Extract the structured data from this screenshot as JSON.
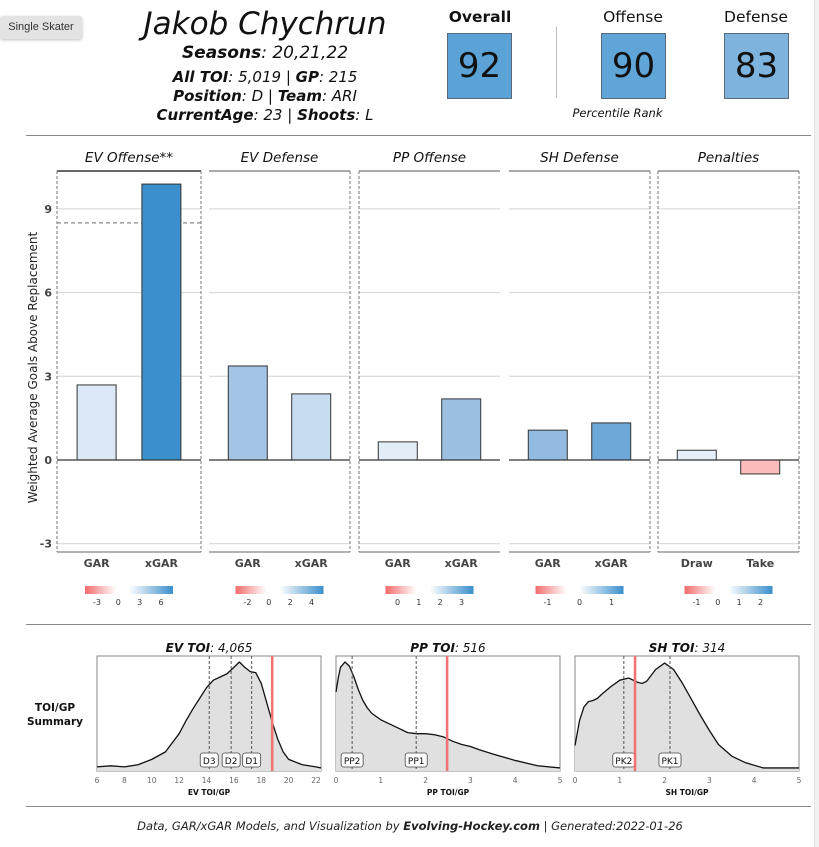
{
  "app": {
    "mode_button": "Single Skater"
  },
  "player": {
    "name": "Jakob Chychrun",
    "seasons_label": "Seasons",
    "seasons_value": ": 20,21,22",
    "all_toi_label": "All TOI",
    "all_toi_value": ": 5,019 | ",
    "gp_label": "GP",
    "gp_value": ": 215",
    "position_label": "Position",
    "position_value": ": D | ",
    "team_label": "Team",
    "team_value": ": ARI",
    "age_label": "CurrentAge",
    "age_value": ": 23 | ",
    "shoots_label": "Shoots",
    "shoots_value": ": L"
  },
  "percentiles": {
    "overall": {
      "label": "Overall",
      "value": "92",
      "color": "#5ba3d6"
    },
    "offense": {
      "label": "Offense",
      "value": "90",
      "color": "#5fa5d7"
    },
    "defense": {
      "label": "Defense",
      "value": "83",
      "color": "#7db3dd"
    },
    "caption": "Percentile Rank"
  },
  "chart_data": [
    {
      "type": "bar",
      "title": "Weighted Average GAR / xGAR by component",
      "ylabel": "Weighted Average Goals Above Replacement",
      "ylim": [
        -3.4,
        10.5
      ],
      "yticks": [
        "9",
        "6",
        "3",
        "0",
        "-3"
      ],
      "ytick_values": [
        9,
        6,
        3,
        0,
        -3
      ],
      "grid": true,
      "panels": [
        {
          "title": "EV Offense**",
          "categories": [
            "GAR",
            "xGAR"
          ],
          "values": [
            2.69,
            9.89
          ],
          "colors": [
            "#dce8f5",
            "#3a8fcc"
          ],
          "reference_line": 8.5,
          "legend_ticks": [
            "-3",
            "0",
            "3",
            "6"
          ]
        },
        {
          "title": "EV Defense",
          "categories": [
            "GAR",
            "xGAR"
          ],
          "values": [
            3.37,
            2.37
          ],
          "colors": [
            "#a3c4e5",
            "#c8dcf0"
          ],
          "legend_ticks": [
            "-2",
            "0",
            "2",
            "4"
          ]
        },
        {
          "title": "PP Offense",
          "categories": [
            "GAR",
            "xGAR"
          ],
          "values": [
            0.65,
            2.19
          ],
          "colors": [
            "#e3edf7",
            "#9bc0e3"
          ],
          "legend_ticks": [
            "0",
            "1",
            "2",
            "3"
          ]
        },
        {
          "title": "SH Defense",
          "categories": [
            "GAR",
            "xGAR"
          ],
          "values": [
            1.07,
            1.33
          ],
          "colors": [
            "#93bbe2",
            "#6ea8d8"
          ],
          "legend_ticks": [
            "-1",
            "0",
            "1"
          ]
        },
        {
          "title": "Penalties",
          "categories": [
            "Draw",
            "Take"
          ],
          "values": [
            0.35,
            -0.5
          ],
          "colors": [
            "#e6eff8",
            "#fdbcbc"
          ],
          "legend_ticks": [
            "-1",
            "0",
            "1",
            "2"
          ]
        }
      ]
    },
    {
      "type": "area",
      "row_label_1": "TOI/GP",
      "row_label_2": "Summary",
      "panels": [
        {
          "title_label": "EV TOI",
          "title_value": ": 4,065",
          "xlabel": "EV TOI/GP",
          "xlim": [
            6,
            22.5
          ],
          "xticks": [
            "6",
            "8",
            "10",
            "12",
            "14",
            "16",
            "18",
            "20",
            "22"
          ],
          "xtick_values": [
            6,
            8,
            10,
            12,
            14,
            16,
            18,
            20,
            22
          ],
          "player_value": 18.8,
          "markers": [
            {
              "label": "D3",
              "x": 14.2
            },
            {
              "label": "D2",
              "x": 15.8
            },
            {
              "label": "D1",
              "x": 17.3
            }
          ],
          "density_x": [
            6,
            7,
            8,
            9,
            10,
            11,
            12,
            12.5,
            13,
            13.5,
            14,
            14.5,
            15,
            15.5,
            16,
            16.4,
            16.8,
            17.2,
            17.6,
            18,
            18.4,
            18.8,
            19.2,
            19.6,
            20,
            21,
            22,
            22.5
          ],
          "density_y": [
            0.02,
            0.03,
            0.02,
            0.04,
            0.09,
            0.16,
            0.33,
            0.45,
            0.56,
            0.66,
            0.76,
            0.83,
            0.86,
            0.89,
            0.95,
            1.0,
            0.95,
            0.91,
            0.9,
            0.8,
            0.62,
            0.44,
            0.28,
            0.16,
            0.09,
            0.04,
            0.02,
            0.01
          ]
        },
        {
          "title_label": "PP TOI",
          "title_value": ": 516",
          "xlabel": "PP TOI/GP",
          "xlim": [
            0,
            5
          ],
          "xticks": [
            "0",
            "1",
            "2",
            "3",
            "4",
            "5"
          ],
          "xtick_values": [
            0,
            1,
            2,
            3,
            4,
            5
          ],
          "player_value": 2.48,
          "markers": [
            {
              "label": "PP2",
              "x": 0.36
            },
            {
              "label": "PP1",
              "x": 1.79
            }
          ],
          "density_x": [
            0,
            0.05,
            0.1,
            0.2,
            0.3,
            0.4,
            0.5,
            0.6,
            0.7,
            0.8,
            1.0,
            1.2,
            1.4,
            1.6,
            1.8,
            2.0,
            2.2,
            2.4,
            2.6,
            2.8,
            3.0,
            3.2,
            3.5,
            4.0,
            4.5,
            5.0
          ],
          "density_y": [
            0.72,
            0.85,
            0.95,
            1.0,
            0.96,
            0.86,
            0.74,
            0.64,
            0.57,
            0.52,
            0.46,
            0.42,
            0.38,
            0.34,
            0.33,
            0.33,
            0.32,
            0.3,
            0.26,
            0.23,
            0.21,
            0.18,
            0.14,
            0.08,
            0.03,
            0.01
          ]
        },
        {
          "title_label": "SH TOI",
          "title_value": ": 314",
          "xlabel": "SH TOI/GP",
          "xlim": [
            0,
            5
          ],
          "xticks": [
            "0",
            "1",
            "2",
            "3",
            "4",
            "5"
          ],
          "xtick_values": [
            0,
            1,
            2,
            3,
            4,
            5
          ],
          "player_value": 1.34,
          "markers": [
            {
              "label": "PK2",
              "x": 1.09
            },
            {
              "label": "PK1",
              "x": 2.12
            }
          ],
          "density_x": [
            0,
            0.1,
            0.2,
            0.3,
            0.4,
            0.5,
            0.6,
            0.8,
            1.0,
            1.2,
            1.4,
            1.5,
            1.6,
            1.8,
            2.0,
            2.2,
            2.4,
            2.6,
            2.8,
            3.0,
            3.2,
            3.5,
            3.8,
            4.2,
            4.6,
            5.0
          ],
          "density_y": [
            0.22,
            0.45,
            0.58,
            0.63,
            0.64,
            0.66,
            0.7,
            0.77,
            0.83,
            0.85,
            0.81,
            0.8,
            0.82,
            0.93,
            0.99,
            0.93,
            0.8,
            0.65,
            0.5,
            0.36,
            0.23,
            0.12,
            0.06,
            0.01,
            0.01,
            0.01
          ]
        }
      ]
    }
  ],
  "footer": {
    "prefix": "Data, GAR/xGAR  Models, and Visualization  by ",
    "brand": "Evolving-Hockey.com",
    "suffix": " | Generated:2022-01-26"
  }
}
